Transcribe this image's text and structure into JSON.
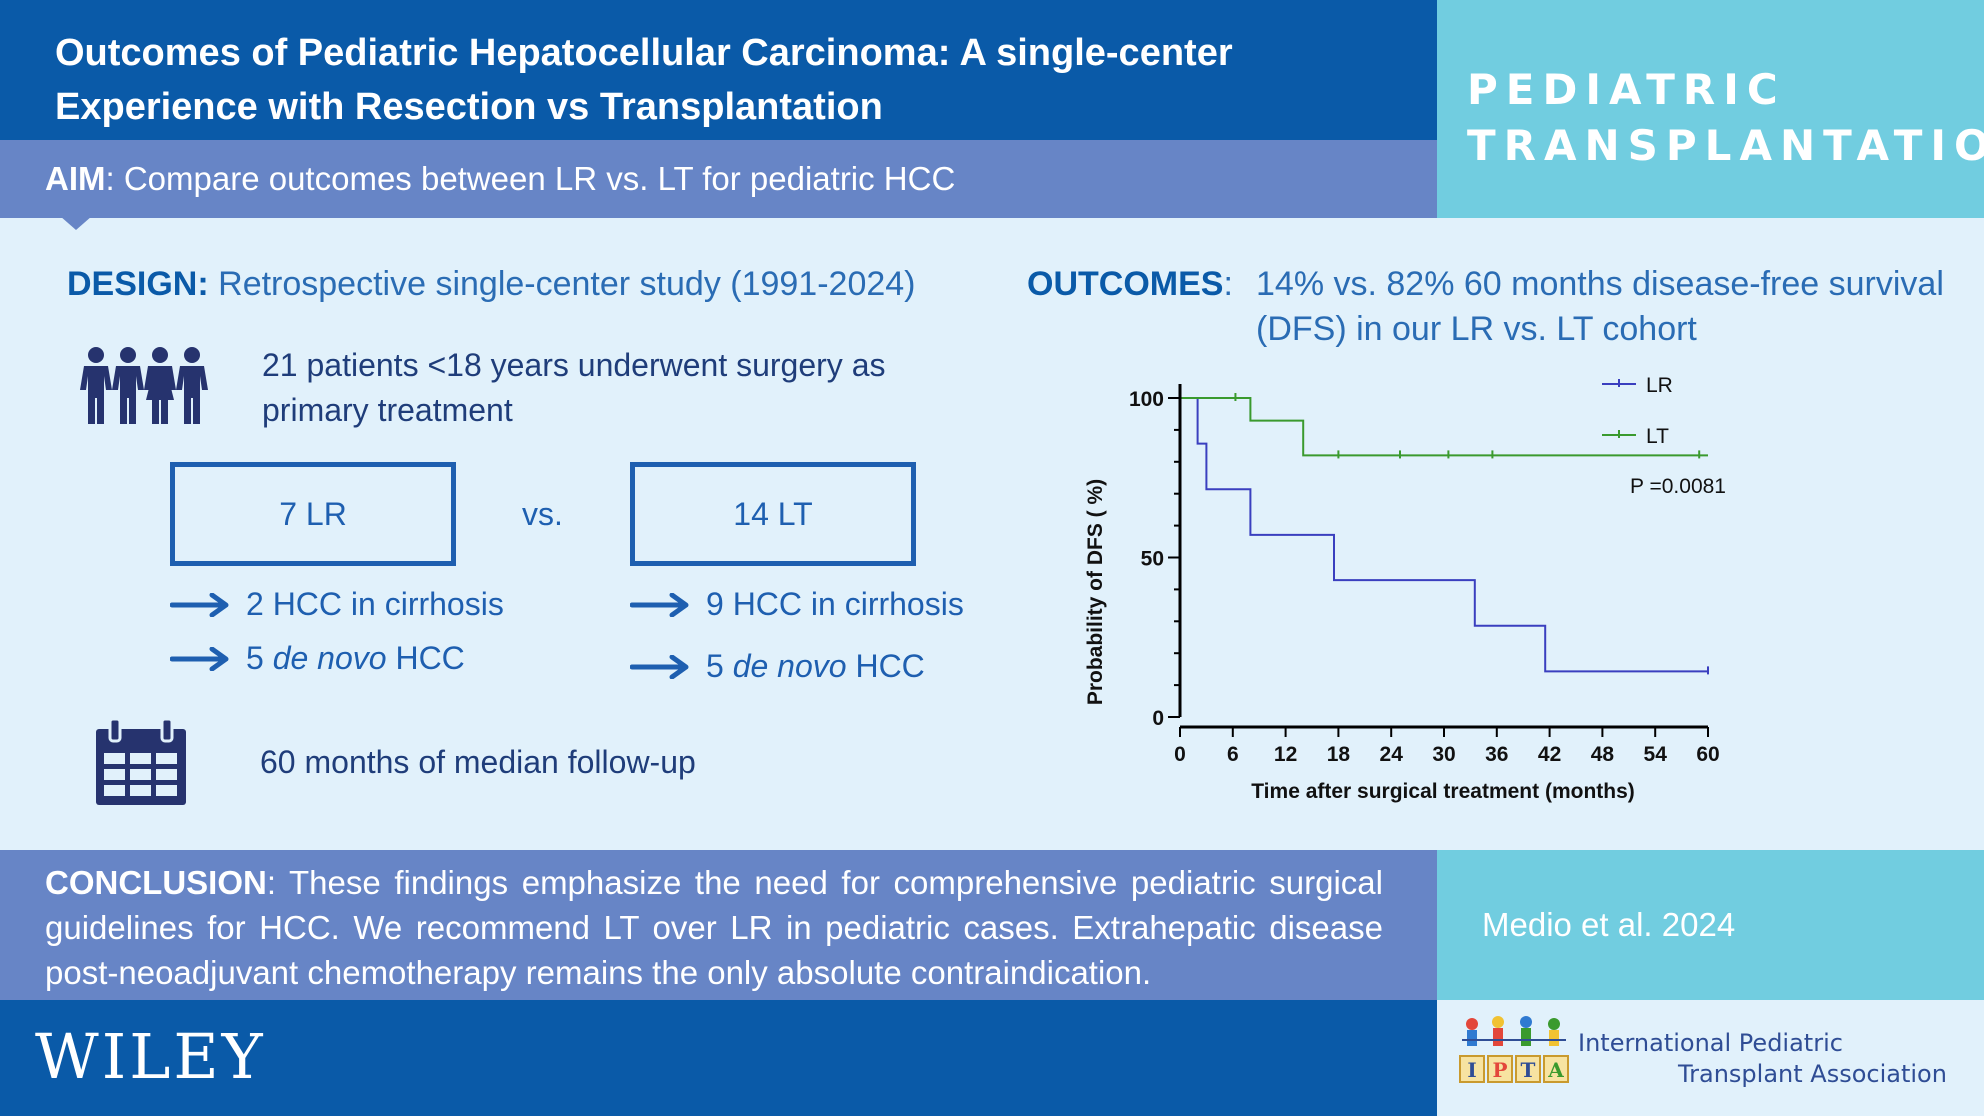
{
  "header": {
    "title": "Outcomes of Pediatric Hepatocellular Carcinoma: A single-center Experience with Resection vs Transplantation",
    "journal": "PEDIATRIC TRANSPLANTATION"
  },
  "aim": {
    "label": "AIM",
    "text": ": Compare outcomes between LR vs. LT for pediatric HCC"
  },
  "design": {
    "label": "DESIGN:",
    "text": " Retrospective single-center study (1991-2024)",
    "patients": "21 patients <18 years underwent surgery as primary treatment",
    "vs": "vs.",
    "groups": [
      {
        "box": "7 LR",
        "cirrhosis": "2 HCC in cirrhosis",
        "denovo_num": "5",
        "denovo_italic": "de novo",
        "denovo_suffix": "HCC"
      },
      {
        "box": "14 LT",
        "cirrhosis": "9 HCC in cirrhosis",
        "denovo_num": "5",
        "denovo_italic": "de novo",
        "denovo_suffix": "HCC"
      }
    ],
    "followup": "60 months of median follow-up",
    "icons": {
      "people": "people-group-icon",
      "calendar": "calendar-icon",
      "arrow": "arrow-right-icon"
    }
  },
  "outcomes": {
    "label": "OUTCOMES",
    "colon": ":",
    "text": "14% vs. 82% 60 months disease-free survival (DFS) in our LR vs. LT cohort"
  },
  "chart_data": {
    "type": "line",
    "subtype": "kaplan-meier step curve",
    "xlabel": "Time after surgical treatment (months)",
    "ylabel": "Probability of DFS ( %)",
    "xlim": [
      0,
      60
    ],
    "ylim": [
      0,
      100
    ],
    "xticks": [
      0,
      6,
      12,
      18,
      24,
      30,
      36,
      42,
      48,
      54,
      60
    ],
    "yticks": [
      0,
      50,
      100
    ],
    "grid": false,
    "legend_position": "top-right",
    "annotation": "P =0.0081",
    "series": [
      {
        "name": "LR",
        "color": "#3a3fbf",
        "steps": [
          [
            0,
            100
          ],
          [
            2,
            85.7
          ],
          [
            3,
            71.4
          ],
          [
            8,
            57.1
          ],
          [
            17.5,
            42.9
          ],
          [
            33.5,
            28.6
          ],
          [
            41.5,
            14.3
          ],
          [
            60,
            14.3
          ]
        ],
        "censored": [
          [
            60,
            14.3
          ]
        ]
      },
      {
        "name": "LT",
        "color": "#3a9a2e",
        "steps": [
          [
            0,
            100
          ],
          [
            8,
            92.9
          ],
          [
            14,
            82
          ],
          [
            60,
            82
          ]
        ],
        "censored": [
          [
            0,
            100
          ],
          [
            6.3,
            100
          ],
          [
            18,
            82
          ],
          [
            25,
            82
          ],
          [
            30.5,
            82
          ],
          [
            35.5,
            82
          ],
          [
            59,
            82
          ]
        ]
      }
    ]
  },
  "conclusion": {
    "label": "CONCLUSION",
    "text": ": These findings emphasize the need for comprehensive pediatric surgical guidelines for HCC. We recommend LT over LR in pediatric cases. Extrahepatic disease post-neoadjuvant chemotherapy remains the only absolute contraindication."
  },
  "citation": "Medio et al. 2024",
  "footer": {
    "publisher": "WILEY",
    "society_line1": "International Pediatric",
    "society_line2": "Transplant Association",
    "logo_letters": [
      "I",
      "P",
      "T",
      "A"
    ]
  },
  "colors": {
    "navy": "#0a5aa8",
    "aim_bar": "#6785c6",
    "teal": "#71cde0",
    "background": "#e1f1fb",
    "text_blue": "#1e5fb0"
  }
}
